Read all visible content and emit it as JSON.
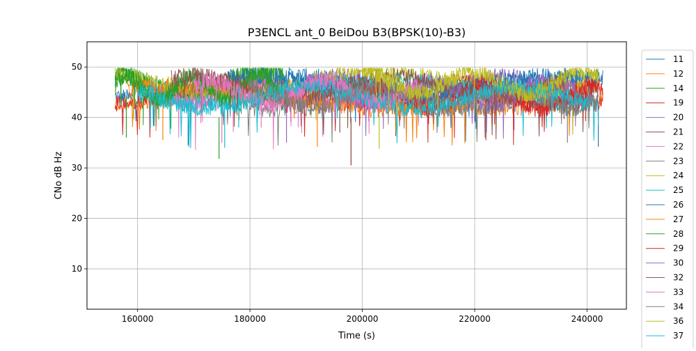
{
  "chart_data": {
    "type": "line",
    "title": "P3ENCL ant_0 BeiDou B3(BPSK(10)-B3)",
    "xlabel": "Time (s)",
    "ylabel": "CNo dB Hz",
    "xlim": [
      151000,
      247000
    ],
    "ylim": [
      2,
      55
    ],
    "xticks": [
      160000,
      180000,
      200000,
      220000,
      240000
    ],
    "yticks": [
      10,
      20,
      30,
      40,
      50
    ],
    "grid": true,
    "legend_position": "right, outside plot",
    "series": [
      {
        "name": "11",
        "color": "#1f77b4",
        "segments": [
          [
            156000,
            242800,
            46
          ]
        ],
        "low_point": [
          242000,
          34.2
        ]
      },
      {
        "name": "12",
        "color": "#ff7f0e",
        "segments": [
          [
            156000,
            242800,
            44
          ]
        ],
        "low_point": [
          192000,
          34.2
        ]
      },
      {
        "name": "14",
        "color": "#2ca02c",
        "segments": [
          [
            156000,
            186000,
            47
          ]
        ],
        "low_point": [
          174500,
          31.8
        ]
      },
      {
        "name": "19",
        "color": "#d62728",
        "segments": [
          [
            156000,
            242800,
            45
          ]
        ],
        "low_point": [
          198000,
          30.5
        ]
      },
      {
        "name": "20",
        "color": "#9467bd",
        "segments": [
          [
            188000,
            241000,
            46
          ]
        ],
        "low_point": [
          227000,
          37.5
        ]
      },
      {
        "name": "21",
        "color": "#8c564b",
        "segments": [
          [
            170000,
            241000,
            45
          ]
        ],
        "low_point": [
          198000,
          31.0
        ]
      },
      {
        "name": "22",
        "color": "#e377c2",
        "segments": [
          [
            162000,
            200000,
            45
          ]
        ],
        "low_point": [
          175000,
          35.0
        ]
      },
      {
        "name": "23",
        "color": "#7f7f7f",
        "segments": [
          [
            158000,
            242000,
            44
          ]
        ],
        "low_point": [
          236500,
          35.0
        ]
      },
      {
        "name": "24",
        "color": "#bcbd22",
        "segments": [
          [
            156000,
            242000,
            47
          ]
        ],
        "low_point": [
          203000,
          33.8
        ]
      },
      {
        "name": "25",
        "color": "#17becf",
        "segments": [
          [
            164000,
            242000,
            45
          ]
        ],
        "low_point": [
          175500,
          34.0
        ]
      },
      {
        "name": "26",
        "color": "#1f77b4",
        "segments": [
          [
            176000,
            242000,
            46
          ]
        ],
        "low_point": [
          169000,
          34.5
        ]
      },
      {
        "name": "27",
        "color": "#ff7f0e",
        "segments": [
          [
            158000,
            240000,
            44
          ]
        ],
        "low_point": [
          164500,
          35.5
        ]
      },
      {
        "name": "28",
        "color": "#2ca02c",
        "segments": [
          [
            156000,
            186000,
            46
          ]
        ],
        "low_point": [
          158000,
          36.0
        ]
      },
      {
        "name": "29",
        "color": "#d62728",
        "segments": [
          [
            200000,
            242800,
            44
          ]
        ],
        "low_point": [
          222000,
          35.5
        ]
      },
      {
        "name": "30",
        "color": "#9467bd",
        "segments": [
          [
            190000,
            238000,
            45
          ]
        ],
        "low_point": [
          186500,
          35.0
        ]
      },
      {
        "name": "32",
        "color": "#8c564b",
        "segments": [
          [
            166000,
            236000,
            46
          ]
        ],
        "low_point": [
          196000,
          37.0
        ]
      },
      {
        "name": "33",
        "color": "#e377c2",
        "segments": [
          [
            170000,
            210000,
            45
          ]
        ],
        "low_point": [
          182000,
          38.0
        ]
      },
      {
        "name": "34",
        "color": "#7f7f7f",
        "segments": [
          [
            180000,
            242000,
            44
          ]
        ],
        "low_point": [
          196000,
          37.5
        ]
      },
      {
        "name": "36",
        "color": "#bcbd22",
        "segments": [
          [
            200000,
            242000,
            47
          ]
        ],
        "low_point": [
          206000,
          37.0
        ]
      },
      {
        "name": "37",
        "color": "#17becf",
        "segments": [
          [
            160000,
            240000,
            44
          ]
        ],
        "low_point": [
          178000,
          38.0
        ]
      }
    ]
  }
}
